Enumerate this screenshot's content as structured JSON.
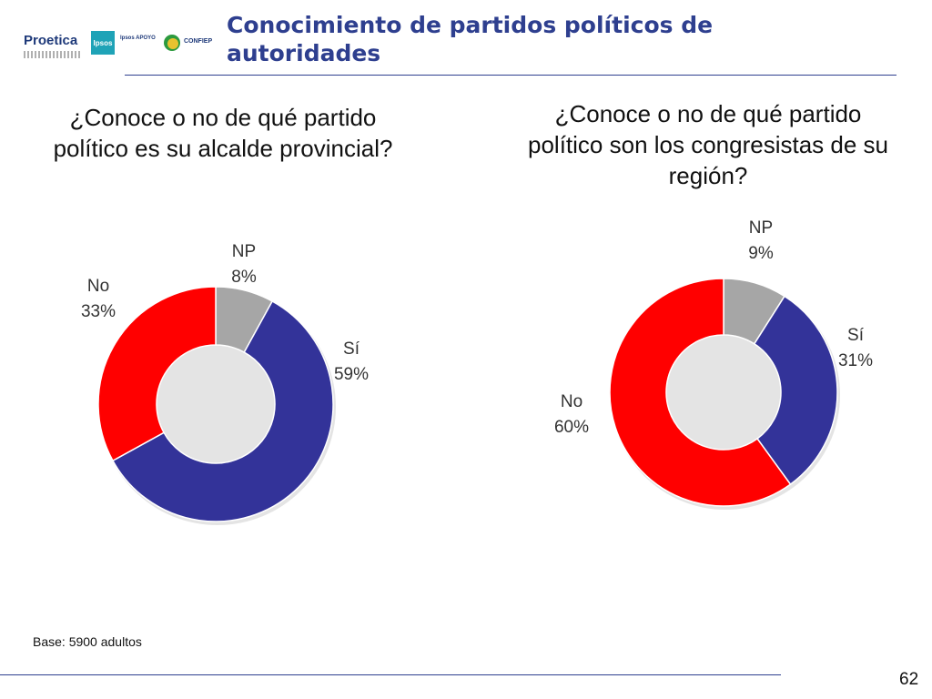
{
  "header": {
    "title_line1": "Conocimiento de partidos políticos de",
    "title_line2": "autoridades",
    "logos": {
      "proetica": "Proetica",
      "ipsos": "Ipsos",
      "apoyo": "Ipsos APOYO",
      "confiep": "CONFIEP"
    }
  },
  "colors": {
    "si": "#333399",
    "no": "#ff0000",
    "np": "#a6a6a6",
    "title": "#2e3f8f"
  },
  "chart_data": [
    {
      "type": "pie",
      "variant": "donut",
      "title": "¿Conoce o no de qué partido político es su alcalde provincial?",
      "title_lines": [
        "¿Conoce o no de qué partido",
        "político es su alcalde provincial?"
      ],
      "categories": [
        "NP",
        "Sí",
        "No"
      ],
      "values": [
        8,
        59,
        33
      ],
      "labels": [
        "8%",
        "59%",
        "33%"
      ],
      "start": "top",
      "direction": "clockwise"
    },
    {
      "type": "pie",
      "variant": "donut",
      "title": "¿Conoce o no de qué partido político son los congresistas de su región?",
      "title_lines": [
        "¿Conoce o no de qué partido",
        "político son los congresistas de su",
        "región?"
      ],
      "categories": [
        "NP",
        "Sí",
        "No"
      ],
      "values": [
        9,
        31,
        60
      ],
      "labels": [
        "9%",
        "31%",
        "60%"
      ],
      "start": "top",
      "direction": "clockwise"
    }
  ],
  "footer": {
    "base": "Base: 5900 adultos",
    "page": "62"
  }
}
